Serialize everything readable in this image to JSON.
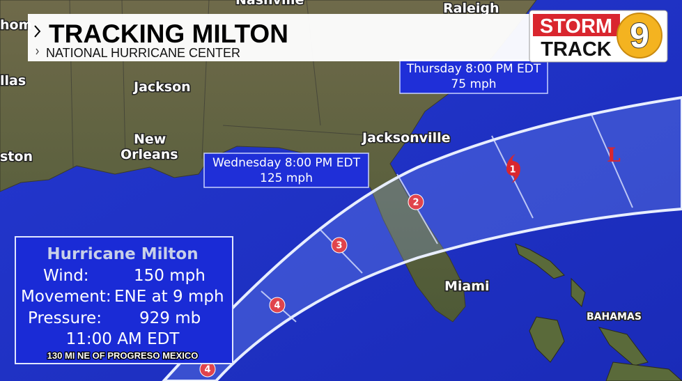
{
  "header": {
    "title": "TRACKING MILTON",
    "subtitle": "NATIONAL HURRICANE CENTER"
  },
  "logo": {
    "line1": "STORM",
    "line2": "TRACK",
    "channel": "9"
  },
  "map": {
    "places": [
      "Nashville",
      "Raleigh",
      "hom",
      "llas",
      "Jackson",
      "New",
      "Orleans",
      "Jacksonville",
      "ston",
      "Miami",
      "BAHAMAS"
    ]
  },
  "callouts": [
    {
      "time": "Thursday 8:00 PM EDT",
      "wind": "75 mph"
    },
    {
      "time": "Wednesday 8:00 PM EDT",
      "wind": "125 mph"
    }
  ],
  "track_points": [
    {
      "category": 1
    },
    {
      "category": 2
    },
    {
      "category": 3
    },
    {
      "category": 4
    },
    {
      "category": 4
    },
    {
      "label": "L"
    }
  ],
  "info_box": {
    "title": "Hurricane Milton",
    "rows": [
      [
        "Wind:",
        "150 mph"
      ],
      [
        "Movement:",
        "ENE at 9 mph"
      ],
      [
        "Pressure:",
        "929 mb"
      ]
    ],
    "time": "11:00 AM EDT",
    "location": "130 MI NE OF PROGRESO MEXICO"
  }
}
